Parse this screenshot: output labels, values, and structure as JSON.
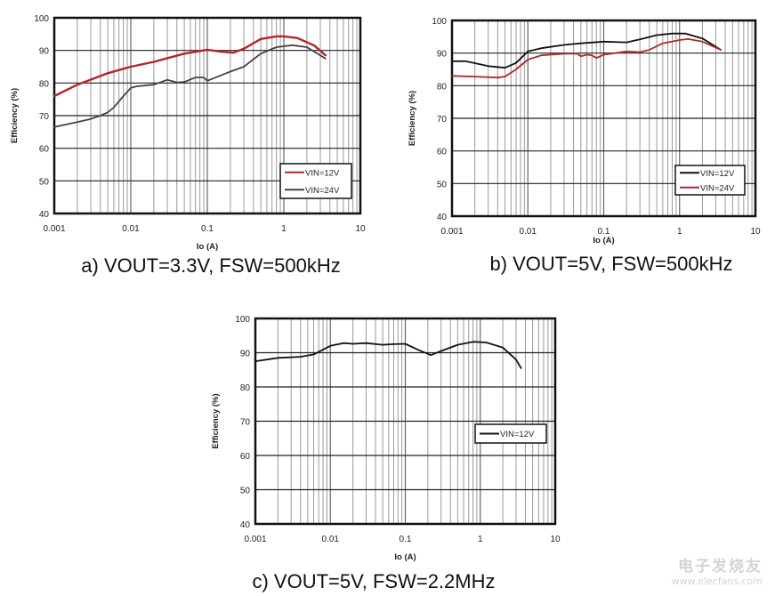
{
  "chart_data": [
    {
      "type": "line",
      "caption": "a) VOUT=3.3V, FSW=500kHz",
      "xlabel": "Io (A)",
      "ylabel": "Efficiency (%)",
      "xscale": "log",
      "xlim": [
        0.001,
        10
      ],
      "ylim": [
        40,
        100
      ],
      "xticks": [
        "0.001",
        "0.01",
        "0.1",
        "1",
        "10"
      ],
      "yticks": [
        "40",
        "50",
        "60",
        "70",
        "80",
        "90",
        "100"
      ],
      "grid": true,
      "legend_position": "bottom-right",
      "series": [
        {
          "name": "VIN=12V",
          "color": "#b3262a",
          "x": [
            0.001,
            0.002,
            0.005,
            0.01,
            0.02,
            0.05,
            0.1,
            0.15,
            0.22,
            0.3,
            0.5,
            0.8,
            1,
            1.5,
            2.5,
            3.5
          ],
          "y": [
            76,
            79.5,
            83,
            85,
            86.5,
            89,
            90.2,
            89.6,
            89.3,
            90.5,
            93.5,
            94.3,
            94.3,
            93.8,
            91.5,
            88.5
          ]
        },
        {
          "name": "VIN=24V",
          "color": "#444444",
          "x": [
            0.001,
            0.002,
            0.003,
            0.004,
            0.005,
            0.006,
            0.008,
            0.01,
            0.012,
            0.02,
            0.03,
            0.04,
            0.05,
            0.07,
            0.09,
            0.1,
            0.2,
            0.3,
            0.5,
            0.8,
            1.3,
            2,
            3.5
          ],
          "y": [
            66.5,
            68,
            69,
            70,
            71,
            72.5,
            76,
            78.5,
            79,
            79.5,
            81,
            80.2,
            80.3,
            81.7,
            81.7,
            80.7,
            83.5,
            85,
            89,
            91,
            91.6,
            91,
            87.5
          ]
        }
      ]
    },
    {
      "type": "line",
      "caption": "b) VOUT=5V, FSW=500kHz",
      "xlabel": "Io (A)",
      "ylabel": "Efficiency (%)",
      "xscale": "log",
      "xlim": [
        0.001,
        10
      ],
      "ylim": [
        40,
        100
      ],
      "xticks": [
        "0.001",
        "0.01",
        "0.1",
        "1",
        "10"
      ],
      "yticks": [
        "40",
        "50",
        "60",
        "70",
        "80",
        "90",
        "100"
      ],
      "grid": true,
      "legend_position": "bottom-right",
      "series": [
        {
          "name": "VIN=12V",
          "color": "#111111",
          "x": [
            0.001,
            0.0015,
            0.003,
            0.005,
            0.007,
            0.01,
            0.015,
            0.03,
            0.05,
            0.1,
            0.2,
            0.3,
            0.5,
            0.8,
            1.2,
            2,
            3.5
          ],
          "y": [
            87.5,
            87.5,
            86,
            85.5,
            87,
            90.5,
            91.5,
            92.5,
            93,
            93.5,
            93.3,
            94.2,
            95.5,
            96,
            96,
            94.5,
            91
          ]
        },
        {
          "name": "VIN=24V",
          "color": "#b3262a",
          "x": [
            0.001,
            0.002,
            0.004,
            0.005,
            0.007,
            0.01,
            0.015,
            0.03,
            0.045,
            0.05,
            0.06,
            0.07,
            0.08,
            0.1,
            0.2,
            0.3,
            0.4,
            0.6,
            1,
            1.3,
            2,
            3.5
          ],
          "y": [
            83,
            82.8,
            82.5,
            82.8,
            85,
            88,
            89.3,
            89.8,
            89.8,
            89,
            89.5,
            89.3,
            88.5,
            89.5,
            90.5,
            90.3,
            91,
            93,
            94,
            94.3,
            93.5,
            91
          ]
        }
      ]
    },
    {
      "type": "line",
      "caption": "c) VOUT=5V, FSW=2.2MHz",
      "xlabel": "Io (A)",
      "ylabel": "Efficiency (%)",
      "xscale": "log",
      "xlim": [
        0.001,
        10
      ],
      "ylim": [
        40,
        100
      ],
      "xticks": [
        "0.001",
        "0.01",
        "0.1",
        "1",
        "10"
      ],
      "yticks": [
        "40",
        "50",
        "60",
        "70",
        "80",
        "90",
        "100"
      ],
      "grid": true,
      "legend_position": "right",
      "series": [
        {
          "name": "VIN=12V",
          "color": "#111111",
          "x": [
            0.001,
            0.002,
            0.004,
            0.006,
            0.01,
            0.015,
            0.02,
            0.03,
            0.05,
            0.07,
            0.1,
            0.15,
            0.22,
            0.3,
            0.5,
            0.8,
            1.2,
            2,
            3,
            3.5
          ],
          "y": [
            87.5,
            88.5,
            88.8,
            89.5,
            92,
            92.8,
            92.6,
            92.8,
            92.3,
            92.5,
            92.6,
            90.8,
            89.3,
            90.5,
            92.3,
            93.2,
            93,
            91.5,
            88,
            85.5
          ]
        }
      ]
    }
  ],
  "watermark": {
    "name": "电子发烧友",
    "url": "www.elecfans.com"
  }
}
